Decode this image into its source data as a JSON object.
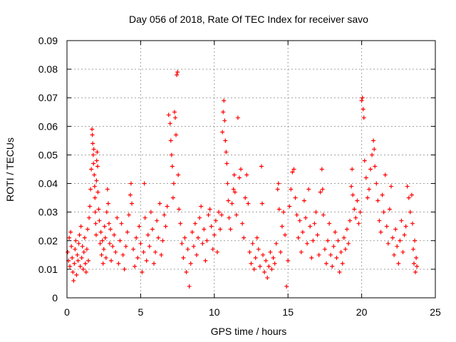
{
  "chart_data": {
    "type": "scatter",
    "title": "Day 056 of 2018, Rate Of TEC Index for receiver savo",
    "xlabel": "GPS time / hours",
    "ylabel": "ROTI / TECUs",
    "xlim": [
      0,
      25
    ],
    "ylim": [
      0,
      0.09
    ],
    "x_ticks": [
      0,
      5,
      10,
      15,
      20,
      25
    ],
    "x_tick_labels": [
      "0",
      "5",
      "10",
      "15",
      "20",
      "25"
    ],
    "y_ticks": [
      0,
      0.01,
      0.02,
      0.03,
      0.04,
      0.05,
      0.06,
      0.07,
      0.08,
      0.09
    ],
    "y_tick_labels": [
      "0",
      "0.01",
      "0.02",
      "0.03",
      "0.04",
      "0.05",
      "0.06",
      "0.07",
      "0.08",
      "0.09"
    ],
    "grid": true,
    "marker": "+",
    "color": "#ff0000",
    "series": [
      {
        "name": "ROTI",
        "points": [
          [
            0.05,
            0.016
          ],
          [
            0.1,
            0.013
          ],
          [
            0.15,
            0.021
          ],
          [
            0.2,
            0.011
          ],
          [
            0.25,
            0.023
          ],
          [
            0.3,
            0.018
          ],
          [
            0.35,
            0.014
          ],
          [
            0.4,
            0.009
          ],
          [
            0.45,
            0.006
          ],
          [
            0.5,
            0.012
          ],
          [
            0.55,
            0.017
          ],
          [
            0.6,
            0.02
          ],
          [
            0.65,
            0.008
          ],
          [
            0.7,
            0.015
          ],
          [
            0.75,
            0.013
          ],
          [
            0.8,
            0.019
          ],
          [
            0.85,
            0.022
          ],
          [
            0.9,
            0.011
          ],
          [
            0.95,
            0.025
          ],
          [
            1.0,
            0.014
          ],
          [
            1.05,
            0.018
          ],
          [
            1.1,
            0.01
          ],
          [
            1.15,
            0.016
          ],
          [
            1.2,
            0.021
          ],
          [
            1.25,
            0.012
          ],
          [
            1.3,
            0.009
          ],
          [
            1.35,
            0.017
          ],
          [
            1.4,
            0.024
          ],
          [
            1.45,
            0.013
          ],
          [
            1.5,
            0.028
          ],
          [
            1.55,
            0.032
          ],
          [
            1.6,
            0.038
          ],
          [
            1.65,
            0.045
          ],
          [
            1.7,
            0.059
          ],
          [
            1.72,
            0.057
          ],
          [
            1.75,
            0.054
          ],
          [
            1.78,
            0.05
          ],
          [
            1.8,
            0.047
          ],
          [
            1.82,
            0.052
          ],
          [
            1.85,
            0.043
          ],
          [
            1.88,
            0.039
          ],
          [
            1.9,
            0.035
          ],
          [
            1.92,
            0.03
          ],
          [
            1.95,
            0.026
          ],
          [
            1.98,
            0.022
          ],
          [
            2.0,
            0.041
          ],
          [
            2.02,
            0.048
          ],
          [
            2.05,
            0.051
          ],
          [
            2.08,
            0.046
          ],
          [
            2.1,
            0.037
          ],
          [
            2.15,
            0.031
          ],
          [
            2.2,
            0.027
          ],
          [
            2.25,
            0.019
          ],
          [
            2.3,
            0.023
          ],
          [
            2.35,
            0.015
          ],
          [
            2.4,
            0.02
          ],
          [
            2.45,
            0.012
          ],
          [
            2.5,
            0.017
          ],
          [
            2.55,
            0.025
          ],
          [
            2.6,
            0.021
          ],
          [
            2.65,
            0.014
          ],
          [
            2.7,
            0.03
          ],
          [
            2.75,
            0.038
          ],
          [
            2.8,
            0.033
          ],
          [
            2.85,
            0.026
          ],
          [
            2.9,
            0.019
          ],
          [
            2.95,
            0.024
          ],
          [
            3.0,
            0.013
          ],
          [
            3.1,
            0.018
          ],
          [
            3.2,
            0.022
          ],
          [
            3.3,
            0.016
          ],
          [
            3.4,
            0.028
          ],
          [
            3.5,
            0.012
          ],
          [
            3.6,
            0.02
          ],
          [
            3.7,
            0.026
          ],
          [
            3.8,
            0.015
          ],
          [
            3.9,
            0.01
          ],
          [
            4.0,
            0.018
          ],
          [
            4.1,
            0.023
          ],
          [
            4.2,
            0.029
          ],
          [
            4.3,
            0.036
          ],
          [
            4.35,
            0.04
          ],
          [
            4.4,
            0.033
          ],
          [
            4.5,
            0.017
          ],
          [
            4.6,
            0.011
          ],
          [
            4.7,
            0.021
          ],
          [
            4.8,
            0.014
          ],
          [
            4.9,
            0.025
          ],
          [
            5.0,
            0.019
          ],
          [
            5.1,
            0.009
          ],
          [
            5.2,
            0.016
          ],
          [
            5.25,
            0.04
          ],
          [
            5.3,
            0.028
          ],
          [
            5.4,
            0.013
          ],
          [
            5.5,
            0.022
          ],
          [
            5.6,
            0.018
          ],
          [
            5.7,
            0.03
          ],
          [
            5.8,
            0.024
          ],
          [
            5.9,
            0.012
          ],
          [
            6.0,
            0.016
          ],
          [
            6.1,
            0.027
          ],
          [
            6.2,
            0.021
          ],
          [
            6.3,
            0.033
          ],
          [
            6.4,
            0.015
          ],
          [
            6.5,
            0.02
          ],
          [
            6.6,
            0.029
          ],
          [
            6.7,
            0.025
          ],
          [
            6.8,
            0.032
          ],
          [
            6.9,
            0.064
          ],
          [
            7.0,
            0.061
          ],
          [
            7.05,
            0.055
          ],
          [
            7.1,
            0.05
          ],
          [
            7.15,
            0.046
          ],
          [
            7.2,
            0.035
          ],
          [
            7.25,
            0.04
          ],
          [
            7.3,
            0.065
          ],
          [
            7.35,
            0.063
          ],
          [
            7.4,
            0.057
          ],
          [
            7.45,
            0.078
          ],
          [
            7.5,
            0.079
          ],
          [
            7.55,
            0.043
          ],
          [
            7.6,
            0.031
          ],
          [
            7.7,
            0.026
          ],
          [
            7.8,
            0.019
          ],
          [
            7.9,
            0.014
          ],
          [
            8.0,
            0.021
          ],
          [
            8.1,
            0.009
          ],
          [
            8.2,
            0.017
          ],
          [
            8.3,
            0.004
          ],
          [
            8.4,
            0.012
          ],
          [
            8.5,
            0.023
          ],
          [
            8.6,
            0.018
          ],
          [
            8.7,
            0.026
          ],
          [
            8.8,
            0.015
          ],
          [
            8.9,
            0.021
          ],
          [
            9.0,
            0.028
          ],
          [
            9.1,
            0.032
          ],
          [
            9.2,
            0.019
          ],
          [
            9.3,
            0.024
          ],
          [
            9.4,
            0.013
          ],
          [
            9.5,
            0.02
          ],
          [
            9.6,
            0.029
          ],
          [
            9.7,
            0.031
          ],
          [
            9.8,
            0.025
          ],
          [
            9.9,
            0.017
          ],
          [
            10.0,
            0.022
          ],
          [
            10.1,
            0.027
          ],
          [
            10.2,
            0.016
          ],
          [
            10.3,
            0.03
          ],
          [
            10.4,
            0.024
          ],
          [
            10.5,
            0.029
          ],
          [
            10.55,
            0.058
          ],
          [
            10.6,
            0.065
          ],
          [
            10.65,
            0.069
          ],
          [
            10.7,
            0.062
          ],
          [
            10.75,
            0.055
          ],
          [
            10.8,
            0.051
          ],
          [
            10.85,
            0.047
          ],
          [
            10.9,
            0.04
          ],
          [
            10.95,
            0.034
          ],
          [
            11.0,
            0.028
          ],
          [
            11.1,
            0.024
          ],
          [
            11.2,
            0.033
          ],
          [
            11.3,
            0.038
          ],
          [
            11.35,
            0.043
          ],
          [
            11.4,
            0.037
          ],
          [
            11.5,
            0.029
          ],
          [
            11.6,
            0.063
          ],
          [
            11.7,
            0.042
          ],
          [
            11.8,
            0.045
          ],
          [
            11.9,
            0.026
          ],
          [
            12.0,
            0.021
          ],
          [
            12.1,
            0.035
          ],
          [
            12.2,
            0.043
          ],
          [
            12.3,
            0.033
          ],
          [
            12.4,
            0.016
          ],
          [
            12.5,
            0.012
          ],
          [
            12.6,
            0.019
          ],
          [
            12.7,
            0.01
          ],
          [
            12.8,
            0.014
          ],
          [
            12.9,
            0.021
          ],
          [
            13.0,
            0.017
          ],
          [
            13.1,
            0.011
          ],
          [
            13.2,
            0.046
          ],
          [
            13.25,
            0.033
          ],
          [
            13.3,
            0.015
          ],
          [
            13.4,
            0.009
          ],
          [
            13.5,
            0.013
          ],
          [
            13.6,
            0.007
          ],
          [
            13.7,
            0.011
          ],
          [
            13.8,
            0.016
          ],
          [
            13.9,
            0.01
          ],
          [
            14.0,
            0.014
          ],
          [
            14.1,
            0.012
          ],
          [
            14.2,
            0.019
          ],
          [
            14.3,
            0.038
          ],
          [
            14.35,
            0.04
          ],
          [
            14.4,
            0.031
          ],
          [
            14.5,
            0.016
          ],
          [
            14.6,
            0.025
          ],
          [
            14.7,
            0.03
          ],
          [
            14.8,
            0.022
          ],
          [
            14.9,
            0.004
          ],
          [
            15.0,
            0.013
          ],
          [
            15.1,
            0.032
          ],
          [
            15.2,
            0.038
          ],
          [
            15.3,
            0.044
          ],
          [
            15.4,
            0.045
          ],
          [
            15.5,
            0.035
          ],
          [
            15.6,
            0.029
          ],
          [
            15.7,
            0.021
          ],
          [
            15.8,
            0.027
          ],
          [
            15.9,
            0.016
          ],
          [
            16.0,
            0.023
          ],
          [
            16.1,
            0.034
          ],
          [
            16.2,
            0.028
          ],
          [
            16.3,
            0.019
          ],
          [
            16.4,
            0.038
          ],
          [
            16.5,
            0.025
          ],
          [
            16.6,
            0.014
          ],
          [
            16.7,
            0.02
          ],
          [
            16.8,
            0.026
          ],
          [
            16.9,
            0.03
          ],
          [
            17.0,
            0.022
          ],
          [
            17.1,
            0.015
          ],
          [
            17.2,
            0.037
          ],
          [
            17.3,
            0.045
          ],
          [
            17.35,
            0.038
          ],
          [
            17.4,
            0.029
          ],
          [
            17.5,
            0.017
          ],
          [
            17.6,
            0.012
          ],
          [
            17.7,
            0.02
          ],
          [
            17.8,
            0.026
          ],
          [
            17.9,
            0.015
          ],
          [
            18.0,
            0.011
          ],
          [
            18.1,
            0.018
          ],
          [
            18.2,
            0.023
          ],
          [
            18.3,
            0.014
          ],
          [
            18.4,
            0.02
          ],
          [
            18.5,
            0.009
          ],
          [
            18.6,
            0.016
          ],
          [
            18.7,
            0.012
          ],
          [
            18.8,
            0.021
          ],
          [
            18.9,
            0.017
          ],
          [
            19.0,
            0.024
          ],
          [
            19.1,
            0.019
          ],
          [
            19.2,
            0.027
          ],
          [
            19.3,
            0.039
          ],
          [
            19.35,
            0.045
          ],
          [
            19.4,
            0.036
          ],
          [
            19.5,
            0.031
          ],
          [
            19.6,
            0.028
          ],
          [
            19.7,
            0.034
          ],
          [
            19.8,
            0.026
          ],
          [
            19.9,
            0.03
          ],
          [
            20.0,
            0.069
          ],
          [
            20.05,
            0.07
          ],
          [
            20.1,
            0.066
          ],
          [
            20.15,
            0.063
          ],
          [
            20.2,
            0.048
          ],
          [
            20.3,
            0.042
          ],
          [
            20.4,
            0.035
          ],
          [
            20.5,
            0.038
          ],
          [
            20.6,
            0.045
          ],
          [
            20.7,
            0.05
          ],
          [
            20.8,
            0.055
          ],
          [
            20.85,
            0.052
          ],
          [
            20.9,
            0.046
          ],
          [
            21.0,
            0.04
          ],
          [
            21.1,
            0.034
          ],
          [
            21.2,
            0.027
          ],
          [
            21.3,
            0.023
          ],
          [
            21.4,
            0.036
          ],
          [
            21.5,
            0.03
          ],
          [
            21.6,
            0.043
          ],
          [
            21.7,
            0.025
          ],
          [
            21.8,
            0.019
          ],
          [
            21.9,
            0.031
          ],
          [
            22.0,
            0.039
          ],
          [
            22.1,
            0.021
          ],
          [
            22.2,
            0.015
          ],
          [
            22.3,
            0.024
          ],
          [
            22.4,
            0.018
          ],
          [
            22.5,
            0.012
          ],
          [
            22.6,
            0.02
          ],
          [
            22.7,
            0.027
          ],
          [
            22.8,
            0.016
          ],
          [
            22.9,
            0.022
          ],
          [
            23.0,
            0.025
          ],
          [
            23.1,
            0.039
          ],
          [
            23.2,
            0.035
          ],
          [
            23.3,
            0.03
          ],
          [
            23.4,
            0.036
          ],
          [
            23.45,
            0.026
          ],
          [
            23.5,
            0.017
          ],
          [
            23.55,
            0.012
          ],
          [
            23.6,
            0.02
          ],
          [
            23.65,
            0.009
          ],
          [
            23.7,
            0.014
          ],
          [
            23.75,
            0.011
          ]
        ]
      }
    ]
  }
}
